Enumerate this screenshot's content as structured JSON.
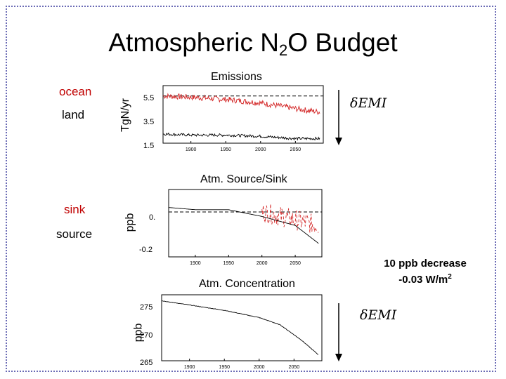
{
  "slide": {
    "title_main": "Atmospheric N",
    "title_sub": "2",
    "title_end": "O Budget",
    "note_line1": "10 ppb decrease",
    "note_line2": "-0.03 W/m",
    "note_sup": "2",
    "delta_label_top": "δEMI",
    "delta_label_bottom": "δEMI"
  },
  "colors": {
    "red": "#d22020",
    "black": "#000000",
    "frame": "#6b6bb5"
  },
  "chart_data": [
    {
      "type": "line",
      "title": "Emissions",
      "ylabel": "TgN/yr",
      "yticks": [
        "5.5",
        "3.5",
        "1.5"
      ],
      "xticks": [
        "1900",
        "1950",
        "2000",
        "2050"
      ],
      "xlim": [
        1860,
        2090
      ],
      "ylim": [
        1.5,
        6.5
      ],
      "legend": [
        {
          "label": "ocean",
          "color": "#c00000"
        },
        {
          "label": "land",
          "color": "#000000"
        }
      ],
      "series": [
        {
          "name": "ocean",
          "color": "#d22020",
          "x": [
            1860,
            1900,
            1950,
            2000,
            2050,
            2085
          ],
          "y": [
            5.6,
            5.5,
            5.3,
            5.0,
            4.5,
            4.2
          ],
          "dashed_baseline": 5.6
        },
        {
          "name": "land",
          "color": "#000000",
          "x": [
            1860,
            1900,
            1950,
            2000,
            2050,
            2085
          ],
          "y": [
            2.3,
            2.2,
            2.2,
            2.1,
            1.9,
            1.9
          ],
          "dashed_baseline": 1.5
        }
      ]
    },
    {
      "type": "line",
      "title": "Atm. Source/Sink",
      "ylabel": "ppb",
      "yticks": [
        "0.",
        "-0.2"
      ],
      "xticks": [
        "1900",
        "1950",
        "2000",
        "2050"
      ],
      "xlim": [
        1860,
        2090
      ],
      "ylim": [
        -0.2,
        0.1
      ],
      "legend": [
        {
          "label": "sink",
          "color": "#c00000"
        },
        {
          "label": "source",
          "color": "#000000"
        }
      ],
      "series": [
        {
          "name": "sink",
          "color": "#d22020",
          "x": [
            2000,
            2085
          ],
          "y": [
            0.0,
            -0.06
          ],
          "dashed_baseline": 0.0
        },
        {
          "name": "source",
          "color": "#000000",
          "x": [
            1860,
            1900,
            1950,
            2000,
            2050,
            2085
          ],
          "y": [
            0.02,
            0.01,
            0.01,
            -0.02,
            -0.06,
            -0.14
          ]
        }
      ]
    },
    {
      "type": "line",
      "title": "Atm. Concentration",
      "ylabel": "ppb",
      "yticks": [
        "275",
        "270",
        "265"
      ],
      "xticks": [
        "1900",
        "1950",
        "2000",
        "2050"
      ],
      "xlim": [
        1860,
        2090
      ],
      "ylim": [
        265,
        276
      ],
      "series": [
        {
          "name": "",
          "color": "#000000",
          "x": [
            1860,
            1900,
            1950,
            2000,
            2030,
            2060,
            2085
          ],
          "y": [
            275,
            274.3,
            273.4,
            272.2,
            271.0,
            268.5,
            266.0
          ]
        }
      ]
    }
  ]
}
